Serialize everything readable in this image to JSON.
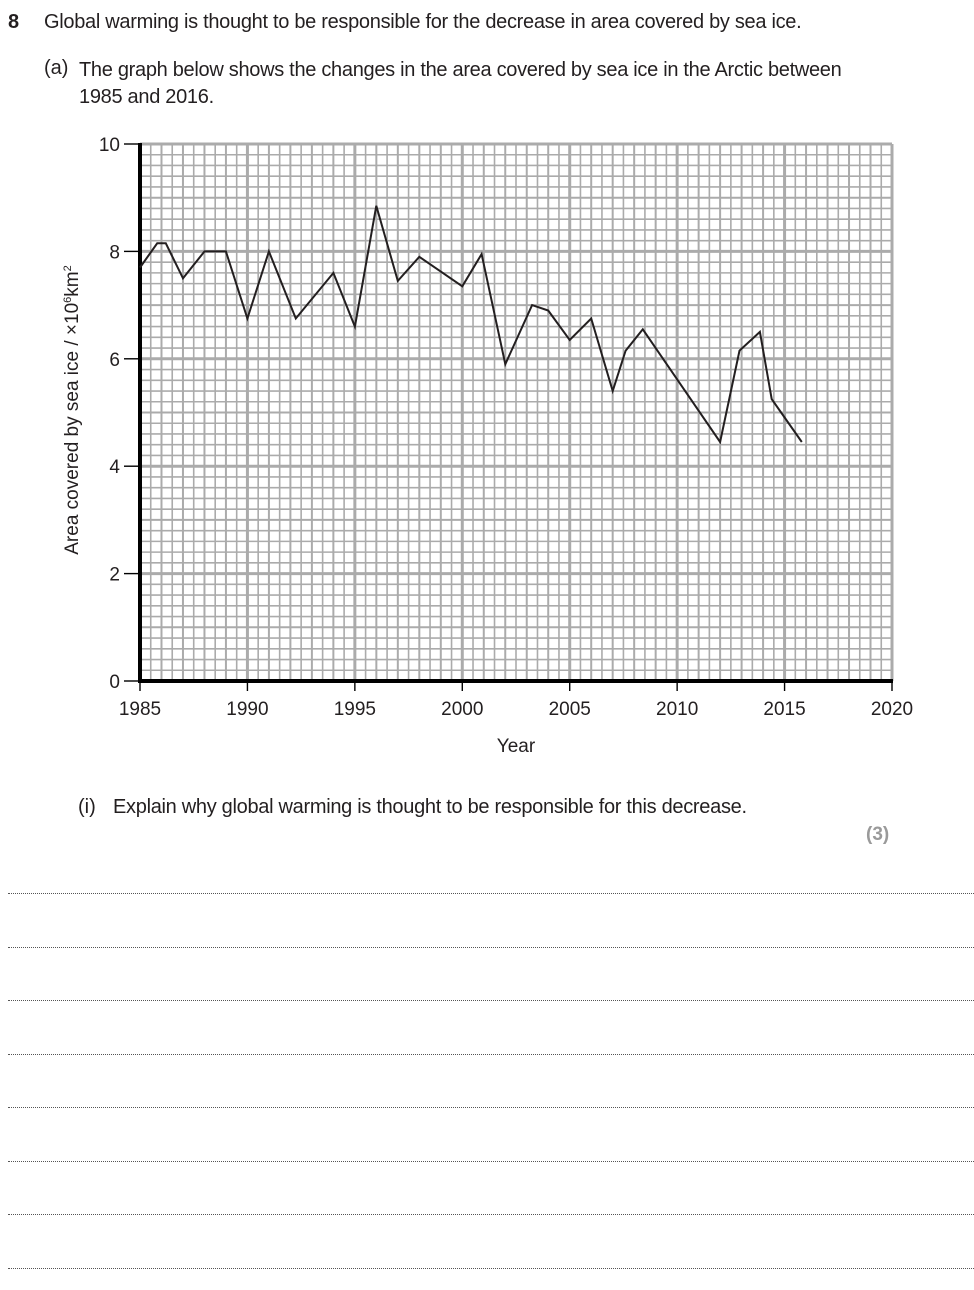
{
  "question": {
    "number": "8",
    "text": "Global warming is thought to be responsible for the decrease in area covered by sea ice.",
    "part_a": {
      "label": "(a)",
      "text": "The graph below shows the changes in the area covered by sea ice in the Arctic between 1985 and 2016."
    },
    "part_i": {
      "label": "(i)",
      "text": "Explain why global warming is thought to be responsible for this decrease.",
      "marks": "(3)"
    },
    "answer_lines": 8
  },
  "chart_data": {
    "type": "line",
    "title": "",
    "xlabel": "Year",
    "ylabel": "Area covered by sea ice / ×10⁶ km²",
    "ylabel_prefix": "Area covered by sea ice / ×10",
    "ylabel_exp": "6",
    "ylabel_unit": "km",
    "ylabel_unit_exp": "2",
    "xlim": [
      1985,
      2020
    ],
    "ylim": [
      0,
      10
    ],
    "x_ticks": [
      1985,
      1990,
      1995,
      2000,
      2005,
      2010,
      2015,
      2020
    ],
    "x_tick_labels": [
      "1985",
      "1990",
      "1995",
      "2000",
      "2005",
      "2010",
      "2015",
      "2020"
    ],
    "y_ticks": [
      0,
      2,
      4,
      6,
      8,
      10
    ],
    "y_tick_labels": [
      "0",
      "2",
      "4",
      "6",
      "8",
      "10"
    ],
    "grid": true,
    "grid_minor_x": 0.5,
    "grid_minor_y": 0.2,
    "line_color": "#231f20",
    "grid_color": "#ababab",
    "series": [
      {
        "name": "Arctic sea ice area",
        "x": [
          1985,
          1985.8,
          1986.2,
          1987,
          1988,
          1989,
          1990,
          1991,
          1992.25,
          1994,
          1995,
          1996,
          1997,
          1998,
          2000,
          2000.9,
          2002,
          2003.25,
          2004,
          2005,
          2006,
          2007,
          2007.6,
          2008.4,
          2012,
          2012.9,
          2013.85,
          2014.4,
          2015.8
        ],
        "y": [
          7.7,
          8.15,
          8.15,
          7.5,
          8.0,
          8.0,
          6.75,
          8.0,
          6.75,
          7.6,
          6.6,
          8.85,
          7.45,
          7.9,
          7.35,
          7.95,
          5.9,
          7.0,
          6.9,
          6.35,
          6.75,
          5.4,
          6.15,
          6.55,
          4.45,
          6.15,
          6.5,
          5.25,
          4.45
        ]
      }
    ]
  }
}
